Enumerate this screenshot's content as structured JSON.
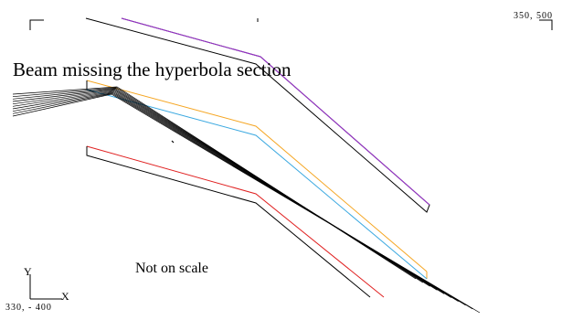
{
  "diagram": {
    "title": "Beam missing the hyperbola section",
    "note": "Not on scale",
    "corner_top_right": "350, 500",
    "corner_bottom_left": "330, - 400",
    "axis_x": "X",
    "axis_y": "Y",
    "beam_ray_count": 10,
    "colors": {
      "outline": "#000000",
      "purple": "#9b30d0",
      "orange": "#f5a623",
      "cyan": "#3aa8e0",
      "red": "#e02020"
    }
  }
}
